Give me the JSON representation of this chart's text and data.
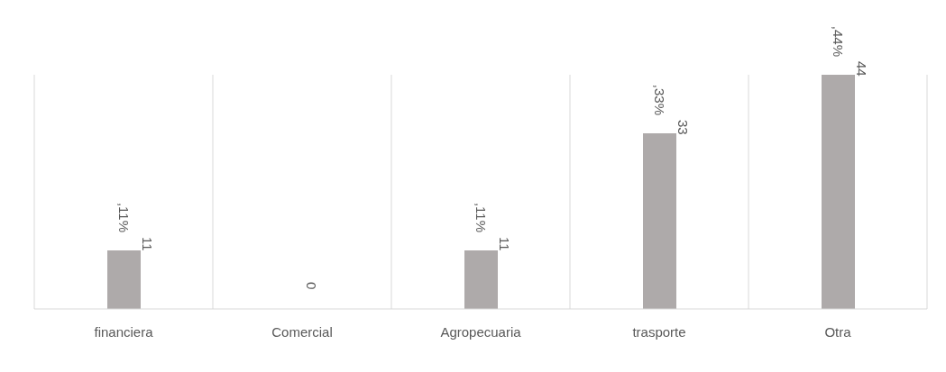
{
  "chart_data": {
    "type": "bar",
    "categories": [
      "financiera",
      "Comercial",
      "Agropecuaria",
      "trasporte",
      "Otra"
    ],
    "values": [
      11,
      0,
      11,
      33,
      44
    ],
    "color": "#aeaaaa",
    "data_labels": true,
    "annotations": [
      {
        "text": ",11%",
        "x": "financiera",
        "y": 11
      },
      {
        "text": ",11%",
        "x": "Agropecuaria",
        "y": 11
      },
      {
        "text": ",33%",
        "x": "trasporte",
        "y": 33
      },
      {
        "text": ",44%",
        "x": "Otra",
        "y": 44
      }
    ],
    "grid": "x",
    "tick_labels": "x",
    "legend": false
  }
}
